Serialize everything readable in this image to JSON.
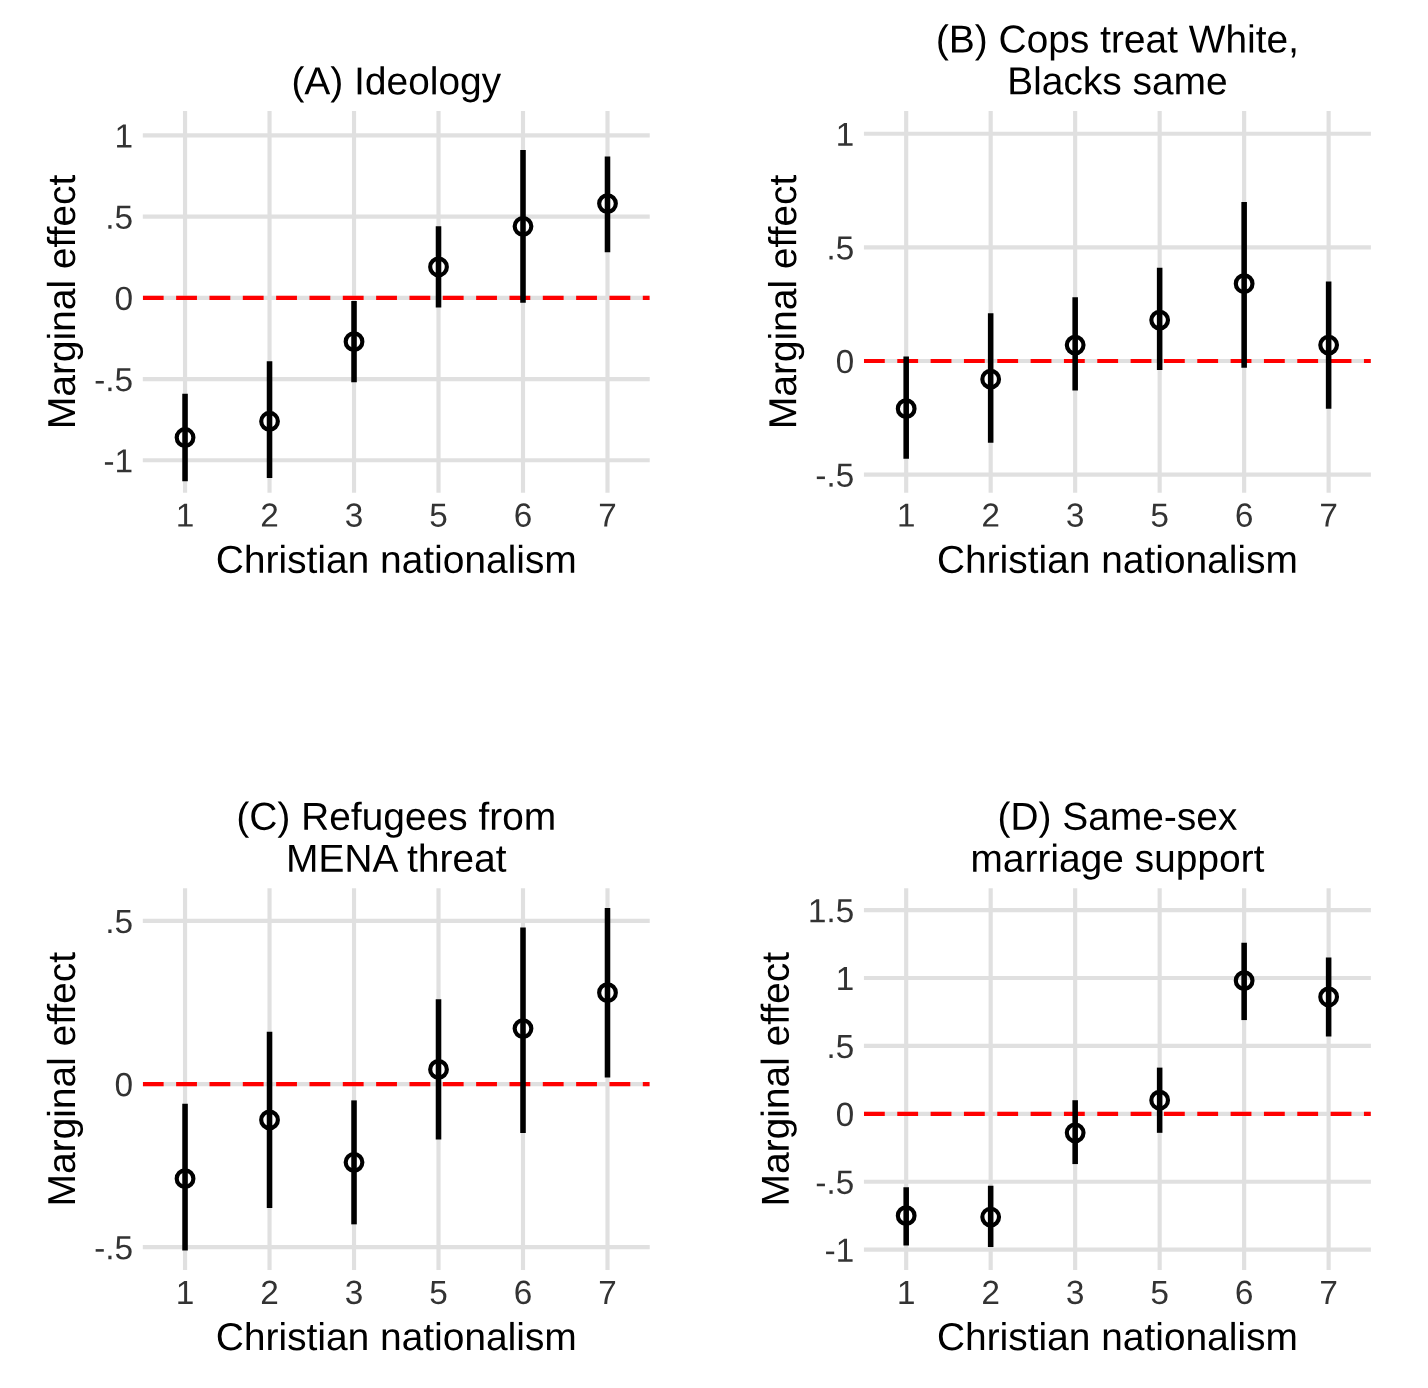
{
  "chart_data": [
    {
      "type": "scatter",
      "title": "(A) Ideology",
      "xlabel": "Christian nationalism",
      "ylabel": "Marginal effect",
      "categories": [
        "1",
        "2",
        "3",
        "5",
        "6",
        "7"
      ],
      "series": [
        {
          "color": "#000000",
          "values": [
            -0.86,
            -0.76,
            -0.27,
            0.19,
            0.44,
            0.58
          ],
          "errors": [
            [
              -1.13,
              -0.59
            ],
            [
              -1.11,
              -0.39
            ],
            [
              -0.52,
              -0.02
            ],
            [
              -0.06,
              0.44
            ],
            [
              -0.03,
              0.91
            ],
            [
              0.28,
              0.87
            ]
          ]
        }
      ],
      "ylim": [
        -1.2,
        1.15
      ],
      "yticks": [
        {
          "value": -1,
          "label": "-1"
        },
        {
          "value": -0.5,
          "label": "-.5"
        },
        0,
        {
          "value": 0.5,
          "label": ".5"
        },
        1
      ],
      "ref_lines": [
        {
          "axis": "y",
          "value": 0,
          "color": "#ff0000",
          "line_style": "dashed"
        }
      ],
      "grid": true,
      "marker": "circle"
    },
    {
      "type": "scatter",
      "title": "(B) Cops treat White,\nBlacks same",
      "xlabel": "Christian nationalism",
      "ylabel": "Marginal effect",
      "categories": [
        "1",
        "2",
        "3",
        "5",
        "6",
        "7"
      ],
      "series": [
        {
          "color": "#000000",
          "values": [
            -0.21,
            -0.08,
            0.07,
            0.18,
            0.34,
            0.07
          ],
          "errors": [
            [
              -0.43,
              0.02
            ],
            [
              -0.36,
              0.21
            ],
            [
              -0.13,
              0.28
            ],
            [
              -0.04,
              0.41
            ],
            [
              -0.03,
              0.7
            ],
            [
              -0.21,
              0.35
            ]
          ]
        }
      ],
      "ylim": [
        -0.58,
        1.1
      ],
      "yticks": [
        {
          "value": -0.5,
          "label": "-.5"
        },
        0,
        {
          "value": 0.5,
          "label": ".5"
        },
        1
      ],
      "ref_lines": [
        {
          "axis": "y",
          "value": 0,
          "color": "#ff0000",
          "line_style": "dashed"
        }
      ],
      "grid": true,
      "marker": "circle"
    },
    {
      "type": "scatter",
      "title": "(C) Refugees from\nMENA threat",
      "xlabel": "Christian nationalism",
      "ylabel": "Marginal effect",
      "categories": [
        "1",
        "2",
        "3",
        "5",
        "6",
        "7"
      ],
      "series": [
        {
          "color": "#000000",
          "values": [
            -0.29,
            -0.11,
            -0.24,
            0.045,
            0.17,
            0.28
          ],
          "errors": [
            [
              -0.51,
              -0.06
            ],
            [
              -0.38,
              0.16
            ],
            [
              -0.43,
              -0.05
            ],
            [
              -0.17,
              0.26
            ],
            [
              -0.15,
              0.48
            ],
            [
              0.02,
              0.54
            ]
          ]
        }
      ],
      "ylim": [
        -0.57,
        0.6
      ],
      "yticks": [
        {
          "value": -0.5,
          "label": "-.5"
        },
        0,
        {
          "value": 0.5,
          "label": ".5"
        }
      ],
      "ref_lines": [
        {
          "axis": "y",
          "value": 0,
          "color": "#ff0000",
          "line_style": "dashed"
        }
      ],
      "grid": true,
      "marker": "circle"
    },
    {
      "type": "scatter",
      "title": "(D) Same-sex\nmarriage support",
      "xlabel": "Christian nationalism",
      "ylabel": "Marginal effect",
      "categories": [
        "1",
        "2",
        "3",
        "5",
        "6",
        "7"
      ],
      "series": [
        {
          "color": "#000000",
          "values": [
            -0.75,
            -0.76,
            -0.14,
            0.1,
            0.98,
            0.86
          ],
          "errors": [
            [
              -0.97,
              -0.54
            ],
            [
              -0.98,
              -0.53
            ],
            [
              -0.37,
              0.1
            ],
            [
              -0.14,
              0.34
            ],
            [
              0.69,
              1.26
            ],
            [
              0.57,
              1.15
            ]
          ]
        }
      ],
      "ylim": [
        -1.15,
        1.66
      ],
      "yticks": [
        {
          "value": -1,
          "label": "-1"
        },
        {
          "value": -0.5,
          "label": "-.5"
        },
        0,
        {
          "value": 0.5,
          "label": ".5"
        },
        1,
        1.5
      ],
      "ref_lines": [
        {
          "axis": "y",
          "value": 0,
          "color": "#ff0000",
          "line_style": "dashed"
        }
      ],
      "grid": true,
      "marker": "circle"
    }
  ]
}
